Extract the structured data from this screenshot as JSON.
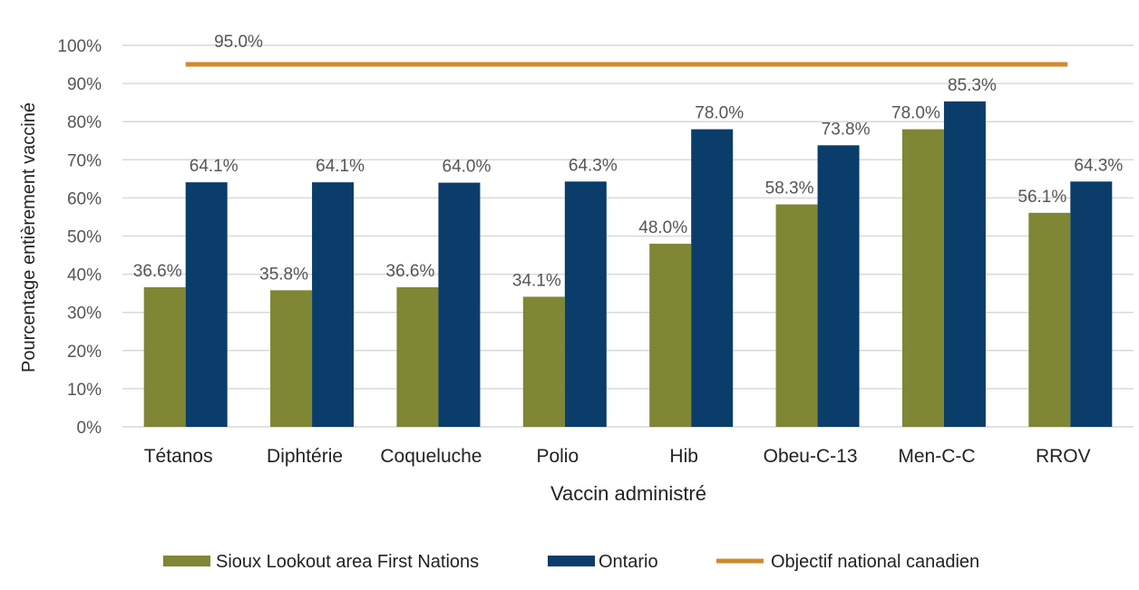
{
  "chart_data": {
    "type": "bar",
    "title": "",
    "xlabel": "Vaccin administré",
    "ylabel": "Pourcentage entièrement vacciné",
    "ylim": [
      0,
      100
    ],
    "yticks": [
      "0%",
      "10%",
      "20%",
      "30%",
      "40%",
      "50%",
      "60%",
      "70%",
      "80%",
      "90%",
      "100%"
    ],
    "grid": true,
    "legend_position": "bottom",
    "categories": [
      "Tétanos",
      "Diphtérie",
      "Coqueluche",
      "Polio",
      "Hib",
      "Obeu-C-13",
      "Men-C-C",
      "RROV"
    ],
    "series": [
      {
        "name": "Sioux Lookout area First Nations",
        "color": "#7f8634",
        "values": [
          36.6,
          35.8,
          36.6,
          34.1,
          48.0,
          58.3,
          78.0,
          56.1
        ],
        "labels": [
          "36.6%",
          "35.8%",
          "36.6%",
          "34.1%",
          "48.0%",
          "58.3%",
          "78.0%",
          "56.1%"
        ]
      },
      {
        "name": "Ontario",
        "color": "#0b3d6b",
        "values": [
          64.1,
          64.1,
          64.0,
          64.3,
          78.0,
          73.8,
          85.3,
          64.3
        ],
        "labels": [
          "64.1%",
          "64.1%",
          "64.0%",
          "64.3%",
          "78.0%",
          "73.8%",
          "85.3%",
          "64.3%"
        ]
      }
    ],
    "reference_line": {
      "name": "Objectif national canadien",
      "value": 95.0,
      "label": "95.0%",
      "color": "#d08a2a"
    }
  }
}
